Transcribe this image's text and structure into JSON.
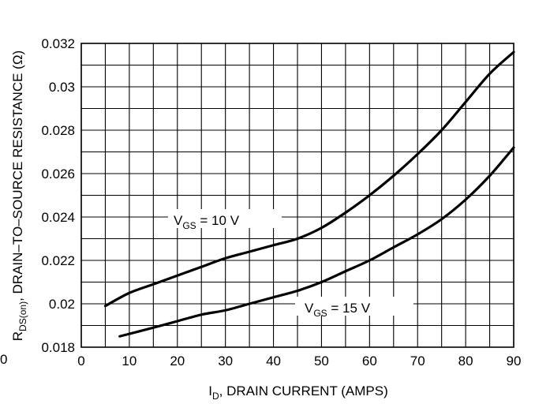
{
  "chart_data": {
    "type": "line",
    "xlabel": {
      "main": "I",
      "sub": "D",
      "rest": ", DRAIN CURRENT (AMPS)"
    },
    "ylabel": {
      "main": "R",
      "sub": "DS(on)",
      "rest": ", DRAIN–TO–SOURCE RESISTANCE (Ω)"
    },
    "xlim": [
      0,
      90
    ],
    "ylim": [
      0.018,
      0.032
    ],
    "xticks": [
      0,
      10,
      20,
      30,
      40,
      50,
      60,
      70,
      80,
      90
    ],
    "yticks": [
      0.018,
      0.02,
      0.022,
      0.024,
      0.026,
      0.028,
      0.03,
      0.032
    ],
    "ytick_labels": [
      "0.018",
      "0.02",
      "0.022",
      "0.024",
      "0.026",
      "0.028",
      "0.03",
      "0.032"
    ],
    "stray_origin_label": "0",
    "grid": true,
    "series": [
      {
        "name": "VGS = 10 V",
        "label": {
          "main": "V",
          "sub": "GS",
          "rest": " = 10 V"
        },
        "x": [
          5,
          10,
          15,
          20,
          25,
          30,
          35,
          40,
          45,
          50,
          55,
          60,
          65,
          70,
          75,
          80,
          85,
          90
        ],
        "y": [
          0.0199,
          0.0205,
          0.0209,
          0.0213,
          0.0217,
          0.0221,
          0.0224,
          0.0227,
          0.023,
          0.0235,
          0.0242,
          0.025,
          0.0259,
          0.0269,
          0.028,
          0.0293,
          0.0306,
          0.0316
        ]
      },
      {
        "name": "VGS = 15 V",
        "label": {
          "main": "V",
          "sub": "GS",
          "rest": " = 15 V"
        },
        "x": [
          8,
          15,
          20,
          25,
          30,
          35,
          40,
          45,
          50,
          55,
          60,
          65,
          70,
          75,
          80,
          85,
          90
        ],
        "y": [
          0.0185,
          0.0189,
          0.0192,
          0.0195,
          0.0197,
          0.02,
          0.0203,
          0.0206,
          0.021,
          0.0215,
          0.022,
          0.0226,
          0.0232,
          0.0239,
          0.0248,
          0.0259,
          0.0272
        ]
      }
    ]
  }
}
